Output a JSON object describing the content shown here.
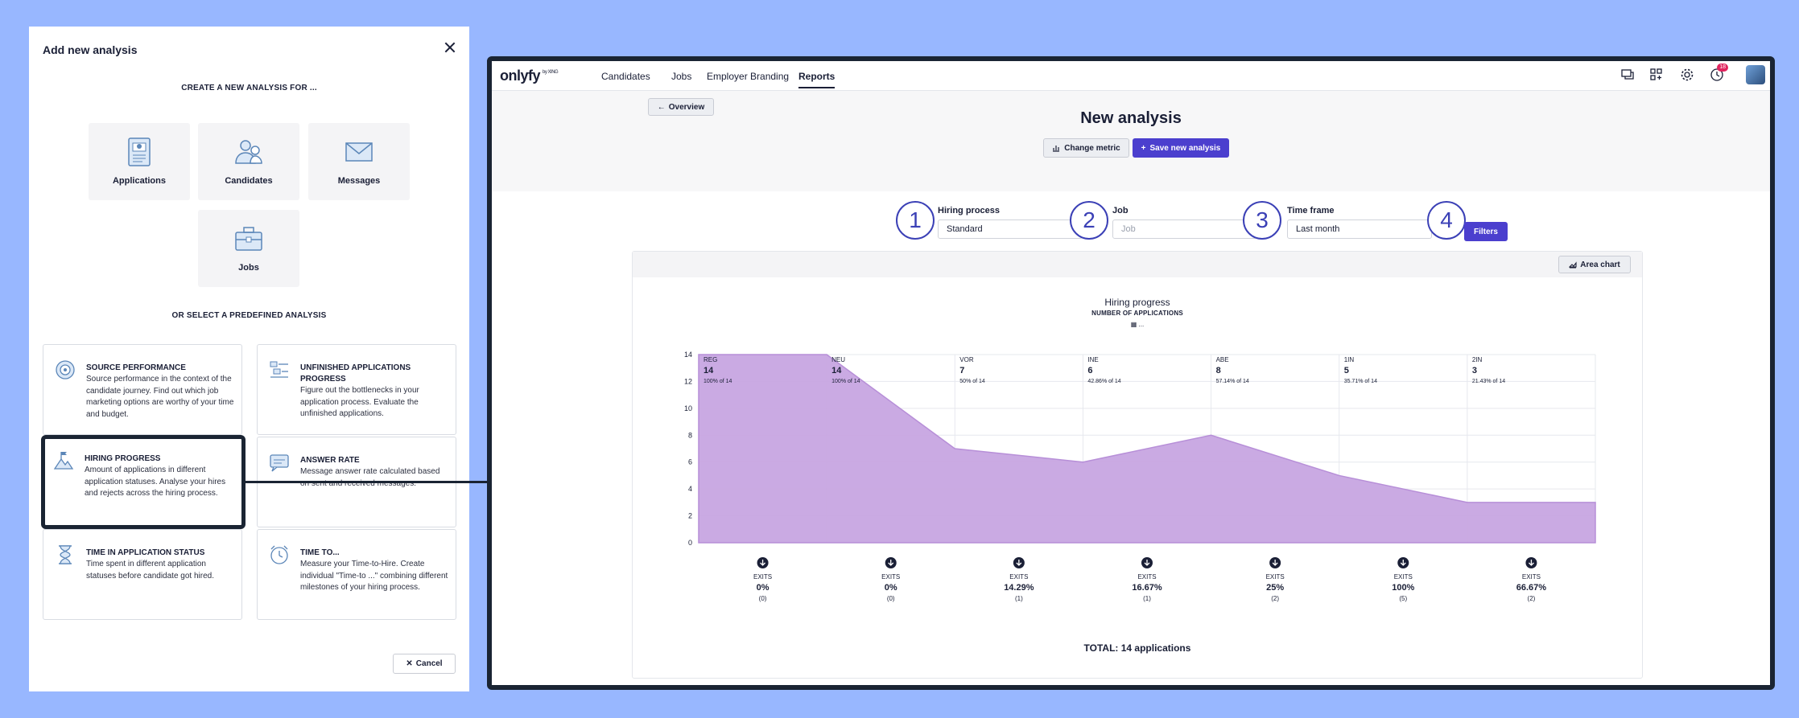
{
  "dialog": {
    "title": "Add new analysis",
    "create_heading": "CREATE A NEW ANALYSIS FOR ...",
    "tiles": [
      {
        "label": "Applications",
        "icon": "applications-icon"
      },
      {
        "label": "Candidates",
        "icon": "candidates-icon"
      },
      {
        "label": "Messages",
        "icon": "messages-icon"
      },
      {
        "label": "Jobs",
        "icon": "jobs-icon"
      }
    ],
    "predefined_heading": "OR SELECT A PREDEFINED ANALYSIS",
    "cards": [
      {
        "title": "SOURCE PERFORMANCE",
        "desc": "Source performance in the context of the candidate journey. Find out which job marketing options are worthy of your time and budget.",
        "icon": "target-icon"
      },
      {
        "title": "UNFINISHED APPLICATIONS PROGRESS",
        "desc": "Figure out the bottlenecks in your application process. Evaluate the unfinished applications.",
        "icon": "list-icon"
      },
      {
        "title": "HIRING PROGRESS",
        "desc": "Amount of applications in different application statuses. Analyse your hires and rejects across the hiring process.",
        "icon": "mountain-flag-icon"
      },
      {
        "title": "ANSWER RATE",
        "desc": "Message answer rate calculated based on sent and received messages.",
        "icon": "chat-icon"
      },
      {
        "title": "TIME IN APPLICATION STATUS",
        "desc": "Time spent in different application statuses before candidate got hired.",
        "icon": "hourglass-icon"
      },
      {
        "title": "TIME TO...",
        "desc": "Measure your Time-to-Hire. Create individual \"Time-to ...\" combining different milestones of your hiring process.",
        "icon": "alarm-clock-icon"
      }
    ],
    "cancel_label": "Cancel"
  },
  "app": {
    "logo": "onlyfy",
    "logo_by": "by XING",
    "nav": [
      "Candidates",
      "Jobs",
      "Employer Branding",
      "Reports"
    ],
    "notification_count": "18",
    "back_label": "Overview",
    "page_title": "New analysis",
    "change_metric": "Change metric",
    "save_analysis": "Save new analysis",
    "steps": [
      "1",
      "2",
      "3",
      "4"
    ],
    "filters": {
      "hiring_process_label": "Hiring process",
      "hiring_process_value": "Standard",
      "job_label": "Job",
      "job_placeholder": "Job",
      "timeframe_label": "Time frame",
      "timeframe_value": "Last month",
      "filters_button": "Filters"
    },
    "area_chart_button": "Area chart",
    "total": "TOTAL: 14 applications",
    "accent": "#4b3fce"
  },
  "chart_data": {
    "type": "area",
    "title": "Hiring progress",
    "subtitle": "NUMBER OF APPLICATIONS",
    "legend": "... ",
    "ylim": [
      0,
      14
    ],
    "yticks": [
      0,
      2,
      4,
      6,
      8,
      10,
      12,
      14
    ],
    "categories": [
      "REG",
      "NEU",
      "VOR",
      "INE",
      "ABE",
      "1IN",
      "2IN"
    ],
    "values": [
      14,
      14,
      7,
      6,
      8,
      5,
      3
    ],
    "percent_labels": [
      "100% of 14",
      "100% of 14",
      "50% of 14",
      "42.86% of 14",
      "57.14% of 14",
      "35.71% of 14",
      "21.43% of 14"
    ],
    "exits_label": "EXITS",
    "exits_percent": [
      "0%",
      "0%",
      "14.29%",
      "16.67%",
      "25%",
      "100%",
      "66.67%"
    ],
    "exits_count": [
      "(0)",
      "(0)",
      "(1)",
      "(1)",
      "(2)",
      "(5)",
      "(2)"
    ],
    "fill_color": "#c8a6e2",
    "line_color": "#b48ad6"
  }
}
